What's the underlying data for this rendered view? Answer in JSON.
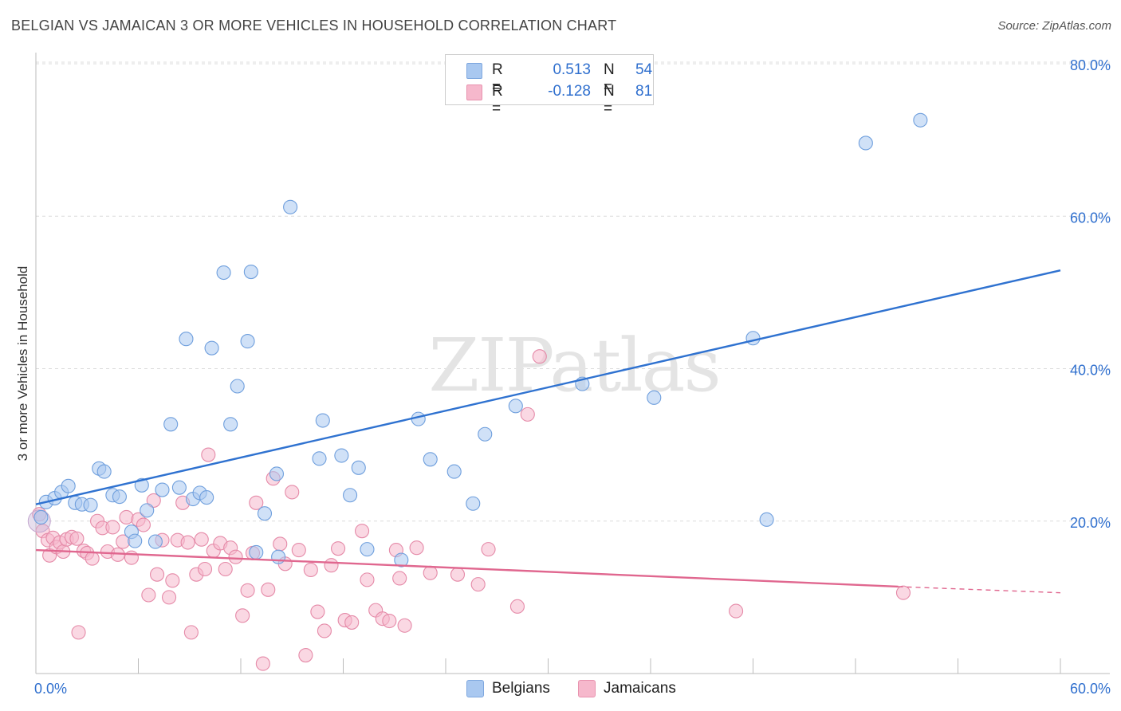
{
  "title": "BELGIAN VS JAMAICAN 3 OR MORE VEHICLES IN HOUSEHOLD CORRELATION CHART",
  "source": "Source: ZipAtlas.com",
  "legend_top": [
    {
      "label": "R =",
      "r_value": "0.513",
      "n_label": "N =",
      "n_value": "54",
      "color": "#a9c8f0"
    },
    {
      "label": "R =",
      "r_value": "-0.128",
      "n_label": "N =",
      "n_value": "81",
      "color": "#f6b8cc"
    }
  ],
  "legend_bottom": [
    {
      "label": "Belgians",
      "color": "#a9c8f0"
    },
    {
      "label": "Jamaicans",
      "color": "#f6b8cc"
    }
  ],
  "watermark": "ZIPatlas",
  "chart_data": {
    "type": "scatter",
    "title": "BELGIAN VS JAMAICAN 3 OR MORE VEHICLES IN HOUSEHOLD CORRELATION CHART",
    "xlabel": "",
    "ylabel": "3 or more Vehicles in Household",
    "xlim": [
      0,
      60
    ],
    "ylim": [
      0,
      80
    ],
    "x_tick_labels": [
      "0.0%",
      "60.0%"
    ],
    "y_tick_values": [
      20,
      40,
      60,
      80
    ],
    "y_tick_labels": [
      "20.0%",
      "40.0%",
      "60.0%",
      "80.0%"
    ],
    "grid": true,
    "series": [
      {
        "name": "Belgians",
        "color": "#2f72d0",
        "fill": "#a9c8f0",
        "trend": {
          "x": [
            0,
            60
          ],
          "y": [
            22.2,
            52.9
          ]
        },
        "points": [
          [
            0.3,
            20.5
          ],
          [
            0.6,
            22.5
          ],
          [
            1.1,
            23.0
          ],
          [
            1.5,
            23.8
          ],
          [
            1.9,
            24.6
          ],
          [
            2.3,
            22.4
          ],
          [
            2.7,
            22.2
          ],
          [
            3.2,
            22.1
          ],
          [
            3.7,
            26.9
          ],
          [
            4.0,
            26.5
          ],
          [
            4.5,
            23.4
          ],
          [
            4.9,
            23.2
          ],
          [
            5.6,
            18.6
          ],
          [
            5.8,
            17.4
          ],
          [
            6.2,
            24.7
          ],
          [
            6.5,
            21.4
          ],
          [
            7.0,
            17.3
          ],
          [
            7.4,
            24.1
          ],
          [
            7.9,
            32.7
          ],
          [
            8.4,
            24.4
          ],
          [
            8.8,
            43.9
          ],
          [
            9.2,
            22.9
          ],
          [
            9.6,
            23.7
          ],
          [
            10.0,
            23.1
          ],
          [
            10.3,
            42.7
          ],
          [
            11.0,
            52.6
          ],
          [
            11.4,
            32.7
          ],
          [
            11.8,
            37.7
          ],
          [
            12.4,
            43.6
          ],
          [
            12.6,
            52.7
          ],
          [
            12.9,
            15.9
          ],
          [
            13.4,
            21.0
          ],
          [
            14.1,
            26.2
          ],
          [
            14.9,
            61.2
          ],
          [
            14.2,
            15.3
          ],
          [
            16.6,
            28.2
          ],
          [
            16.8,
            33.2
          ],
          [
            17.9,
            28.6
          ],
          [
            18.4,
            23.4
          ],
          [
            18.9,
            27.0
          ],
          [
            19.4,
            16.3
          ],
          [
            21.4,
            14.9
          ],
          [
            22.4,
            33.4
          ],
          [
            23.1,
            28.1
          ],
          [
            24.5,
            26.5
          ],
          [
            25.6,
            22.3
          ],
          [
            26.3,
            31.4
          ],
          [
            28.1,
            35.1
          ],
          [
            32.0,
            38.0
          ],
          [
            36.2,
            36.2
          ],
          [
            42.0,
            44.0
          ],
          [
            42.8,
            20.2
          ],
          [
            48.6,
            69.6
          ],
          [
            51.8,
            72.6
          ]
        ]
      },
      {
        "name": "Jamaicans",
        "color": "#e0678f",
        "fill": "#f6b8cc",
        "trend": {
          "x": [
            0,
            50.5
          ],
          "y": [
            16.2,
            11.4
          ]
        },
        "trend_dashed": {
          "x": [
            50.5,
            60
          ],
          "y": [
            11.4,
            10.6
          ]
        },
        "points": [
          [
            0.2,
            20.9
          ],
          [
            0.4,
            18.7
          ],
          [
            0.7,
            17.5
          ],
          [
            0.8,
            15.5
          ],
          [
            1.0,
            17.8
          ],
          [
            1.2,
            16.6
          ],
          [
            1.4,
            17.2
          ],
          [
            1.6,
            16.0
          ],
          [
            1.8,
            17.6
          ],
          [
            2.1,
            17.9
          ],
          [
            2.4,
            17.7
          ],
          [
            2.5,
            5.4
          ],
          [
            2.8,
            16.1
          ],
          [
            3.0,
            15.8
          ],
          [
            3.3,
            15.1
          ],
          [
            3.6,
            20.0
          ],
          [
            3.9,
            19.1
          ],
          [
            4.2,
            16.0
          ],
          [
            4.5,
            19.2
          ],
          [
            4.8,
            15.6
          ],
          [
            5.1,
            17.3
          ],
          [
            5.3,
            20.5
          ],
          [
            5.6,
            15.2
          ],
          [
            6.0,
            20.2
          ],
          [
            6.3,
            19.5
          ],
          [
            6.6,
            10.3
          ],
          [
            6.9,
            22.7
          ],
          [
            7.1,
            13.0
          ],
          [
            7.4,
            17.5
          ],
          [
            7.8,
            10.0
          ],
          [
            8.0,
            12.2
          ],
          [
            8.3,
            17.5
          ],
          [
            8.6,
            22.4
          ],
          [
            8.9,
            17.2
          ],
          [
            9.1,
            5.4
          ],
          [
            9.4,
            13.0
          ],
          [
            9.7,
            17.6
          ],
          [
            9.9,
            13.7
          ],
          [
            10.1,
            28.7
          ],
          [
            10.4,
            16.1
          ],
          [
            10.8,
            17.1
          ],
          [
            11.1,
            13.7
          ],
          [
            11.4,
            16.5
          ],
          [
            11.7,
            15.3
          ],
          [
            12.1,
            7.6
          ],
          [
            12.4,
            10.9
          ],
          [
            12.7,
            15.8
          ],
          [
            12.9,
            22.4
          ],
          [
            13.3,
            1.3
          ],
          [
            13.6,
            11.0
          ],
          [
            13.9,
            25.6
          ],
          [
            14.3,
            17.0
          ],
          [
            14.6,
            14.4
          ],
          [
            15.0,
            23.8
          ],
          [
            15.4,
            16.2
          ],
          [
            15.8,
            2.4
          ],
          [
            16.1,
            13.6
          ],
          [
            16.5,
            8.1
          ],
          [
            16.9,
            5.6
          ],
          [
            17.3,
            14.2
          ],
          [
            17.7,
            16.4
          ],
          [
            18.1,
            7.0
          ],
          [
            18.5,
            6.7
          ],
          [
            19.1,
            18.7
          ],
          [
            19.4,
            12.3
          ],
          [
            19.9,
            8.3
          ],
          [
            20.3,
            7.2
          ],
          [
            20.7,
            6.9
          ],
          [
            21.1,
            16.2
          ],
          [
            21.3,
            12.5
          ],
          [
            21.6,
            6.3
          ],
          [
            22.3,
            16.5
          ],
          [
            23.1,
            13.2
          ],
          [
            24.7,
            13.0
          ],
          [
            25.9,
            11.7
          ],
          [
            26.5,
            16.3
          ],
          [
            28.2,
            8.8
          ],
          [
            28.8,
            34.0
          ],
          [
            29.5,
            41.6
          ],
          [
            41.0,
            8.2
          ],
          [
            50.8,
            10.6
          ]
        ]
      }
    ]
  }
}
